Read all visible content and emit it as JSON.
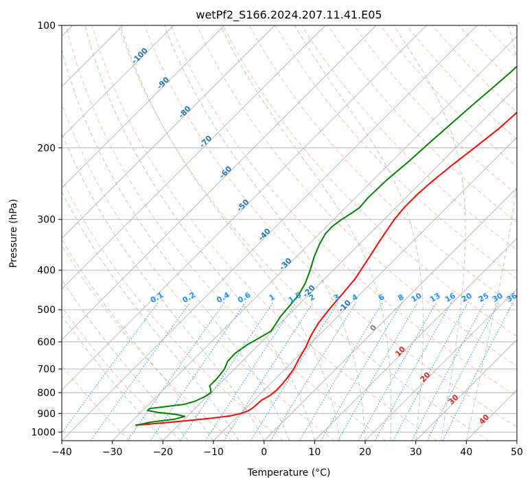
{
  "chart_data": {
    "type": "line",
    "title": "wetPf2_S166.2024.207.11.41.E05",
    "xlabel": "Temperature (°C)",
    "ylabel": "Pressure (hPa)",
    "xlim": [
      -40,
      50
    ],
    "ylim": [
      1050,
      100
    ],
    "y_scale": "log",
    "grid": true,
    "x_ticks": [
      -40,
      -30,
      -20,
      -10,
      0,
      10,
      20,
      30,
      40,
      50
    ],
    "y_ticks": [
      100,
      200,
      300,
      400,
      500,
      600,
      700,
      800,
      900,
      1000
    ],
    "series": [
      {
        "role": "temperature",
        "color": "#ff0000",
        "points": [
          [
            962,
            -28.5
          ],
          [
            940,
            -20.0
          ],
          [
            925,
            -15.0
          ],
          [
            912,
            -11.5
          ],
          [
            898,
            -9.8
          ],
          [
            885,
            -9.0
          ],
          [
            870,
            -8.7
          ],
          [
            850,
            -8.6
          ],
          [
            835,
            -8.5
          ],
          [
            815,
            -7.8
          ],
          [
            790,
            -7.5
          ],
          [
            760,
            -7.6
          ],
          [
            730,
            -7.9
          ],
          [
            700,
            -8.3
          ],
          [
            660,
            -9.3
          ],
          [
            620,
            -10.2
          ],
          [
            580,
            -11.5
          ],
          [
            540,
            -12.5
          ],
          [
            500,
            -13.1
          ],
          [
            460,
            -13.5
          ],
          [
            420,
            -14.0
          ],
          [
            380,
            -15.2
          ],
          [
            340,
            -16.6
          ],
          [
            300,
            -18.0
          ],
          [
            280,
            -18.4
          ],
          [
            260,
            -18.4
          ],
          [
            240,
            -18.0
          ],
          [
            220,
            -17.3
          ],
          [
            200,
            -16.3
          ],
          [
            180,
            -15.3
          ],
          [
            160,
            -14.8
          ],
          [
            145,
            -14.6
          ],
          [
            130,
            -14.5
          ],
          [
            118,
            -14.8
          ],
          [
            108,
            -15.6
          ],
          [
            100,
            -16.2
          ]
        ]
      },
      {
        "role": "dewpoint",
        "color": "#008000",
        "points": [
          [
            962,
            -28.4
          ],
          [
            945,
            -26.0
          ],
          [
            930,
            -22.0
          ],
          [
            915,
            -20.5
          ],
          [
            905,
            -22.5
          ],
          [
            895,
            -26.5
          ],
          [
            885,
            -29.0
          ],
          [
            875,
            -29.0
          ],
          [
            865,
            -26.0
          ],
          [
            855,
            -23.0
          ],
          [
            840,
            -21.5
          ],
          [
            820,
            -20.5
          ],
          [
            800,
            -20.0
          ],
          [
            785,
            -20.7
          ],
          [
            770,
            -21.6
          ],
          [
            740,
            -21.6
          ],
          [
            700,
            -22.0
          ],
          [
            670,
            -22.9
          ],
          [
            640,
            -23.0
          ],
          [
            610,
            -22.3
          ],
          [
            585,
            -21.2
          ],
          [
            565,
            -20.3
          ],
          [
            545,
            -20.7
          ],
          [
            520,
            -21.3
          ],
          [
            490,
            -21.6
          ],
          [
            460,
            -22.0
          ],
          [
            430,
            -23.0
          ],
          [
            400,
            -24.6
          ],
          [
            370,
            -26.5
          ],
          [
            345,
            -27.9
          ],
          [
            325,
            -28.8
          ],
          [
            312,
            -28.9
          ],
          [
            300,
            -28.4
          ],
          [
            290,
            -27.7
          ],
          [
            280,
            -27.2
          ],
          [
            265,
            -27.5
          ],
          [
            240,
            -27.3
          ],
          [
            215,
            -26.6
          ],
          [
            195,
            -26.2
          ],
          [
            175,
            -25.7
          ],
          [
            158,
            -25.2
          ],
          [
            143,
            -24.6
          ],
          [
            130,
            -24.1
          ],
          [
            118,
            -23.9
          ],
          [
            108,
            -24.1
          ],
          [
            100,
            -24.4
          ]
        ]
      }
    ],
    "mixing_ratio_labels": [
      "0.1",
      "0.2",
      "0.4",
      "0.6",
      "1",
      "1.5",
      "2",
      "3",
      "4",
      "6",
      "8",
      "10",
      "13",
      "16",
      "20",
      "25",
      "30",
      "36"
    ],
    "isotherm_labels": [
      "-100",
      "-90",
      "-80",
      "-70",
      "-60",
      "-50",
      "-40",
      "-30",
      "-20",
      "-10",
      "0",
      "10",
      "20",
      "30",
      "40"
    ],
    "colors": {
      "temperature": "#ff0000",
      "dewpoint": "#008000",
      "grid": "#b0b0b0",
      "isotherm_label": "#1f77b4",
      "mixing_ratio": "#1e90ff",
      "dry_adiabat": "#ffa07a",
      "moist_adiabat": "#8fbc8f",
      "zero_label": "#808080",
      "warm_label": "#d62728"
    }
  }
}
